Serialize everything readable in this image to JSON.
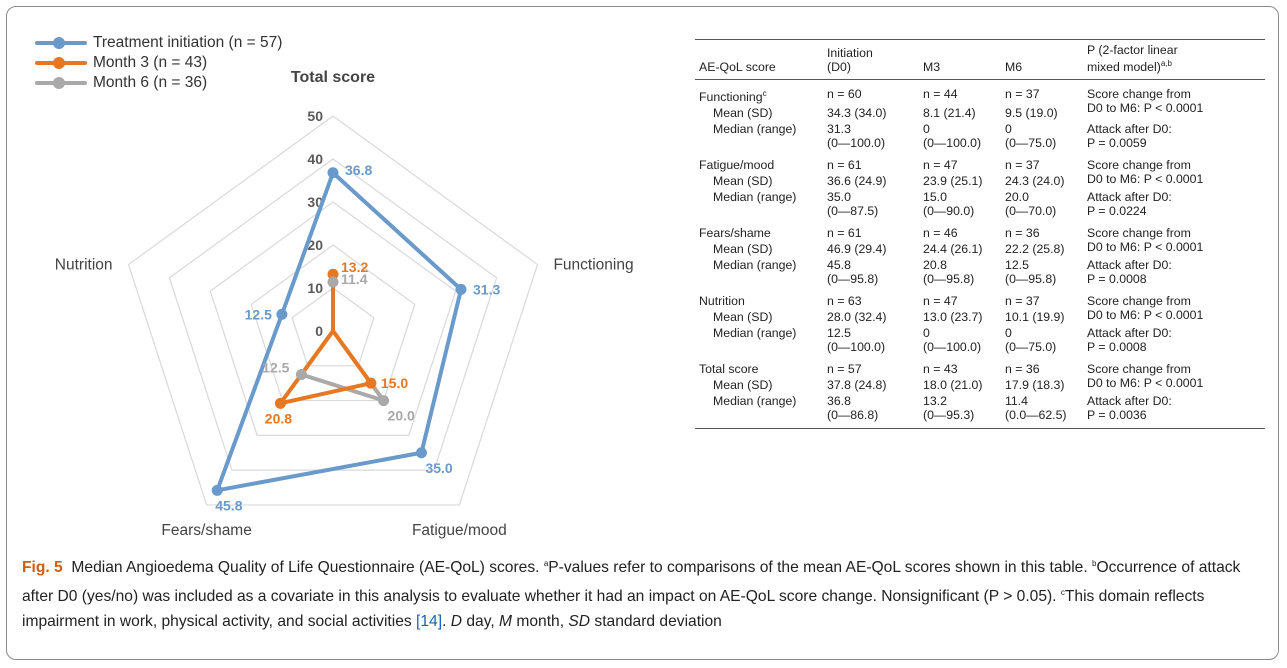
{
  "chart_data": [
    {
      "type": "radar",
      "title": "Total score",
      "axes": [
        "Total score",
        "Functioning",
        "Fatigue/mood",
        "Fears/shame",
        "Nutrition"
      ],
      "radial_ticks": [
        "0",
        "10",
        "20",
        "30",
        "40",
        "50"
      ],
      "range": [
        0,
        50
      ],
      "series": [
        {
          "name": "Treatment initiation (n = 57)",
          "color": "#6a9acb",
          "values": [
            36.8,
            31.3,
            35.0,
            45.8,
            12.5
          ],
          "labels": [
            "36.8",
            "31.3",
            "35.0",
            "45.8",
            "12.5"
          ]
        },
        {
          "name": "Month 3 (n = 43)",
          "color": "#e87722",
          "values": [
            13.2,
            0,
            15.0,
            20.8,
            0
          ],
          "labels": [
            "13.2",
            "",
            "15.0",
            "20.8",
            ""
          ]
        },
        {
          "name": "Month 6 (n = 36)",
          "color": "#a9a9a9",
          "values": [
            11.4,
            0,
            20.0,
            12.5,
            0
          ],
          "labels": [
            "11.4",
            "",
            "20.0",
            "12.5",
            ""
          ]
        }
      ]
    },
    {
      "type": "table",
      "header": [
        "AE-QoL score",
        "Initiation\n(D0)",
        "M3",
        "M6",
        "P (2-factor linear\nmixed model)"
      ],
      "header_sup": "a,b",
      "groups": [
        {
          "name": "Functioning",
          "name_sup": "c",
          "n": [
            "n = 60",
            "n = 44",
            "n = 37"
          ],
          "mean": [
            "34.3 (34.0)",
            "8.1 (21.4)",
            "9.5 (19.0)"
          ],
          "median": [
            "31.3\n(0—100.0)",
            "0\n(0—100.0)",
            "0\n(0—75.0)"
          ],
          "p_change": "Score change from\nD0 to M6: P < 0.0001",
          "p_attack": "Attack after D0:\nP = 0.0059"
        },
        {
          "name": "Fatigue/mood",
          "name_sup": "",
          "n": [
            "n = 61",
            "n = 47",
            "n = 37"
          ],
          "mean": [
            "36.6 (24.9)",
            "23.9 (25.1)",
            "24.3 (24.0)"
          ],
          "median": [
            "35.0\n(0—87.5)",
            "15.0\n (0—90.0)",
            "20.0\n(0—70.0)"
          ],
          "p_change": "Score change from\nD0 to M6: P < 0.0001",
          "p_attack": "Attack after D0:\nP = 0.0224"
        },
        {
          "name": "Fears/shame",
          "name_sup": "",
          "n": [
            "n = 61",
            "n = 46",
            "n = 36"
          ],
          "mean": [
            "46.9 (29.4)",
            "24.4 (26.1)",
            "22.2 (25.8)"
          ],
          "median": [
            "45.8\n(0—95.8)",
            "20.8\n(0—95.8)",
            "12.5\n(0—95.8)"
          ],
          "p_change": "Score change from\nD0 to M6: P < 0.0001",
          "p_attack": "Attack after D0:\nP = 0.0008"
        },
        {
          "name": "Nutrition",
          "name_sup": "",
          "n": [
            "n = 63",
            "n = 47",
            "n = 37"
          ],
          "mean": [
            "28.0 (32.4)",
            "13.0 (23.7)",
            "10.1 (19.9)"
          ],
          "median": [
            "12.5\n(0—100.0)",
            "0\n(0—100.0)",
            "0\n(0—75.0)"
          ],
          "p_change": "Score change from\nD0 to M6: P < 0.0001",
          "p_attack": "Attack after D0:\nP = 0.0008"
        },
        {
          "name": "Total score",
          "name_sup": "",
          "n": [
            "n = 57",
            "n = 43",
            "n = 36"
          ],
          "mean": [
            "37.8 (24.8)",
            "18.0 (21.0)",
            "17.9 (18.3)"
          ],
          "median": [
            "36.8\n(0—86.8)",
            "13.2\n(0—95.3)",
            "11.4\n(0.0—62.5)"
          ],
          "p_change": "Score change from\nD0 to M6: P < 0.0001",
          "p_attack": "Attack after D0:\nP = 0.0036"
        }
      ],
      "row_labels": {
        "mean": "Mean (SD)",
        "median": "Median (range)"
      }
    }
  ],
  "caption": {
    "figure_label": "Fig. 5",
    "title": "Median Angioedema Quality of Life Questionnaire (AE-QoL) scores.",
    "note_a_sup": "a",
    "note_a": "P-values refer to comparisons of the mean AE-QoL scores shown in this table.",
    "note_b_sup": "b",
    "note_b": "Occurrence of attack after D0 (yes/no) was included as a covariate in this analysis to evaluate whether it had an impact on AE-QoL score change. Nonsignificant (P > 0.05).",
    "note_c_sup": "c",
    "note_c": "This domain reflects impairment in work, physical activity, and social activities",
    "ref": "[14]",
    "abbr_d": "D",
    "abbr_d_text": "day,",
    "abbr_m": "M",
    "abbr_m_text": "month,",
    "abbr_sd": "SD",
    "abbr_sd_text": "standard deviation"
  }
}
